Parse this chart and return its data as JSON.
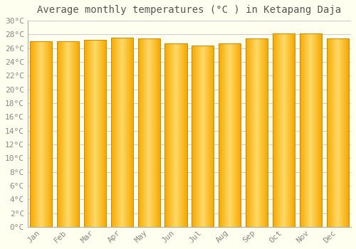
{
  "title": "Average monthly temperatures (°C ) in Ketapang Daja",
  "months": [
    "Jan",
    "Feb",
    "Mar",
    "Apr",
    "May",
    "Jun",
    "Jul",
    "Aug",
    "Sep",
    "Oct",
    "Nov",
    "Dec"
  ],
  "values": [
    27.0,
    27.0,
    27.2,
    27.5,
    27.4,
    26.7,
    26.4,
    26.7,
    27.4,
    28.1,
    28.1,
    27.4
  ],
  "bar_color_center": "#FFD966",
  "bar_color_edge": "#F5A800",
  "bar_border_color": "#CC8800",
  "background_color": "#FFFFF0",
  "plot_bg_color": "#FFFFFF",
  "grid_color": "#CCCCCC",
  "text_color": "#888888",
  "title_color": "#555555",
  "ylim": [
    0,
    30
  ],
  "ytick_step": 2,
  "title_fontsize": 10,
  "tick_fontsize": 8,
  "bar_width": 0.82
}
